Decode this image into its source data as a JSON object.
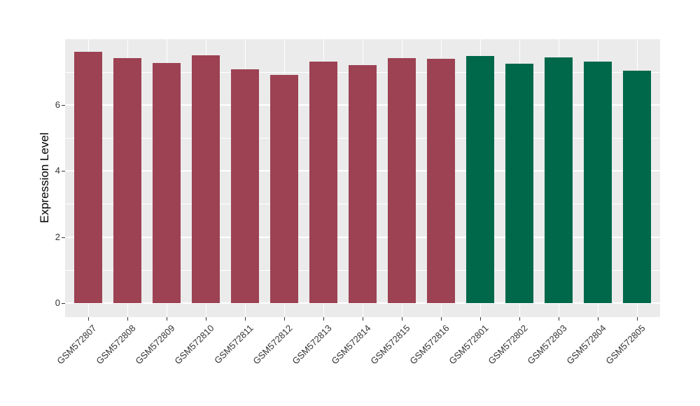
{
  "style": {
    "figure_background": "#FFFFFF",
    "panel_background": "#EBEBEB",
    "gridline_color": "#FFFFFF",
    "axis_text_color": "#333333",
    "axis_title_color": "#000000"
  },
  "chart_data": {
    "type": "bar",
    "title": "",
    "xlabel": "",
    "ylabel": "Expression Level",
    "ylim": [
      -0.42,
      7.99
    ],
    "yticks_major": [
      0,
      2,
      4,
      6
    ],
    "yticks_minor": [
      1,
      3,
      5,
      7
    ],
    "y_tick_labels": [
      "0",
      "2",
      "4",
      "6"
    ],
    "grid": "white major and minor gridlines on gray panel",
    "legend_position": "none",
    "x_tick_rotation_deg": 45,
    "palette": {
      "maroon": "#9C4253",
      "green": "#00684A"
    },
    "categories": [
      "GSM572807",
      "GSM572808",
      "GSM572809",
      "GSM572810",
      "GSM572811",
      "GSM572812",
      "GSM572813",
      "GSM572814",
      "GSM572815",
      "GSM572816",
      "GSM572801",
      "GSM572802",
      "GSM572803",
      "GSM572804",
      "GSM572805"
    ],
    "values": [
      7.61,
      7.42,
      7.27,
      7.5,
      7.08,
      6.91,
      7.31,
      7.2,
      7.42,
      7.39,
      7.48,
      7.25,
      7.44,
      7.31,
      7.03
    ],
    "bars": [
      {
        "label": "GSM572807",
        "value": 7.61,
        "color_key": "maroon"
      },
      {
        "label": "GSM572808",
        "value": 7.42,
        "color_key": "maroon"
      },
      {
        "label": "GSM572809",
        "value": 7.27,
        "color_key": "maroon"
      },
      {
        "label": "GSM572810",
        "value": 7.5,
        "color_key": "maroon"
      },
      {
        "label": "GSM572811",
        "value": 7.08,
        "color_key": "maroon"
      },
      {
        "label": "GSM572812",
        "value": 6.91,
        "color_key": "maroon"
      },
      {
        "label": "GSM572813",
        "value": 7.31,
        "color_key": "maroon"
      },
      {
        "label": "GSM572814",
        "value": 7.2,
        "color_key": "maroon"
      },
      {
        "label": "GSM572815",
        "value": 7.42,
        "color_key": "maroon"
      },
      {
        "label": "GSM572816",
        "value": 7.39,
        "color_key": "maroon"
      },
      {
        "label": "GSM572801",
        "value": 7.48,
        "color_key": "green"
      },
      {
        "label": "GSM572802",
        "value": 7.25,
        "color_key": "green"
      },
      {
        "label": "GSM572803",
        "value": 7.44,
        "color_key": "green"
      },
      {
        "label": "GSM572804",
        "value": 7.31,
        "color_key": "green"
      },
      {
        "label": "GSM572805",
        "value": 7.03,
        "color_key": "green"
      }
    ]
  }
}
